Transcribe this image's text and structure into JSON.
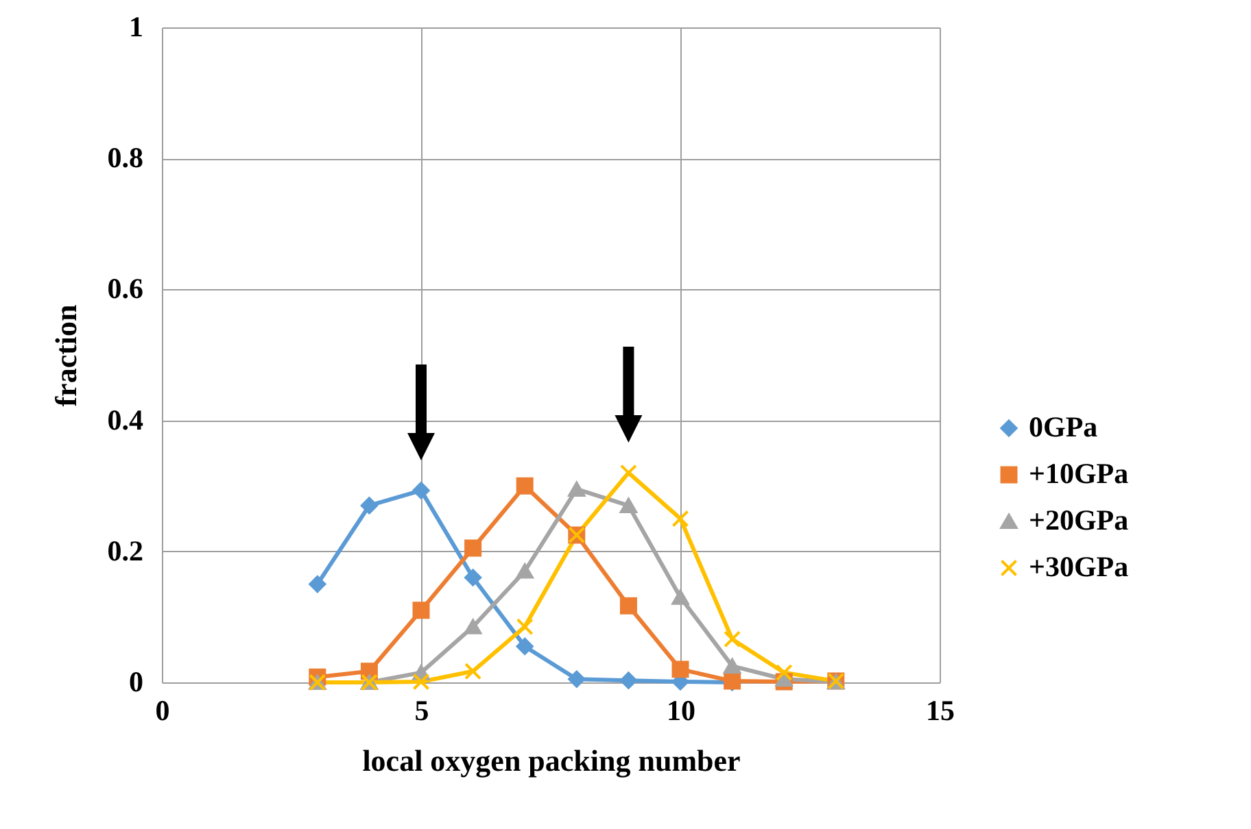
{
  "chart_data": {
    "type": "line",
    "xlabel": "local oxygen packing number",
    "ylabel": "fraction",
    "x": [
      3,
      4,
      5,
      6,
      7,
      8,
      9,
      10,
      11,
      12,
      13
    ],
    "series": [
      {
        "name": "0GPa",
        "color": "#5b9bd5",
        "marker": "diamond",
        "values": [
          0.15,
          0.27,
          0.293,
          0.16,
          0.055,
          0.005,
          0.003,
          0.001,
          0,
          null,
          null
        ]
      },
      {
        "name": "+10GPa",
        "color": "#ed7d31",
        "marker": "square",
        "values": [
          0.008,
          0.017,
          0.11,
          0.205,
          0.3,
          0.225,
          0.117,
          0.02,
          0.002,
          0.001,
          0.002
        ]
      },
      {
        "name": "+20GPa",
        "color": "#a5a5a5",
        "marker": "triangle",
        "values": [
          0,
          0,
          0.015,
          0.085,
          0.17,
          0.295,
          0.27,
          0.13,
          0.025,
          0.005,
          0.001
        ]
      },
      {
        "name": "+30GPa",
        "color": "#ffc000",
        "marker": "cross",
        "values": [
          0,
          0,
          0.001,
          0.017,
          0.085,
          0.225,
          0.32,
          0.25,
          0.066,
          0.015,
          0.002
        ]
      }
    ],
    "xlim": [
      0,
      15
    ],
    "xticks": [
      0,
      5,
      10,
      15
    ],
    "ylim": [
      0,
      1
    ],
    "yticks": [
      0,
      0.2,
      0.4,
      0.6,
      0.8,
      1
    ],
    "grid": true,
    "legend": "right",
    "line_style": "solid"
  }
}
